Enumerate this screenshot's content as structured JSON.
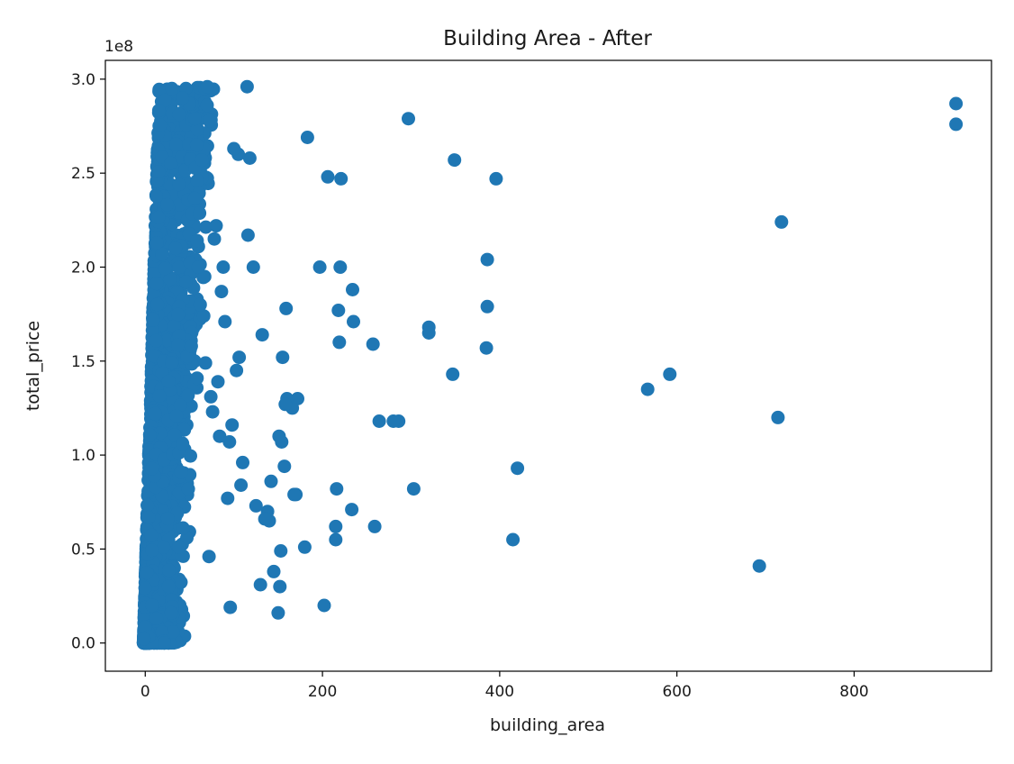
{
  "chart_data": {
    "type": "scatter",
    "title": "Building Area - After",
    "xlabel": "building_area",
    "ylabel": "total_price",
    "y_offset_label": "1e8",
    "xlim": [
      -45,
      955
    ],
    "ylim": [
      -0.15,
      3.1
    ],
    "x_ticks": [
      0,
      200,
      400,
      600,
      800
    ],
    "x_tick_labels": [
      "0",
      "200",
      "400",
      "600",
      "800"
    ],
    "y_ticks": [
      0.0,
      0.5,
      1.0,
      1.5,
      2.0,
      2.5,
      3.0
    ],
    "y_tick_labels": [
      "0.0",
      "0.5",
      "1.0",
      "1.5",
      "2.0",
      "2.5",
      "3.0"
    ],
    "grid": false,
    "legend": "none",
    "marker_color": "#1f77b4",
    "series": [
      {
        "x": [
          915,
          915,
          718,
          714,
          693,
          592,
          567,
          420,
          415,
          396,
          386,
          386,
          385,
          349,
          347,
          320,
          320,
          303,
          297,
          286,
          280,
          264,
          259,
          257,
          235,
          234,
          233,
          221,
          220,
          219,
          218,
          216,
          215,
          215,
          206,
          202,
          197,
          183,
          180,
          172,
          170,
          168,
          166,
          160,
          159,
          158,
          157,
          155,
          154,
          153,
          152,
          151,
          150,
          145,
          142,
          140,
          138,
          135,
          132,
          130,
          125,
          122,
          118,
          116,
          115,
          110,
          108,
          106,
          105,
          103,
          100,
          98,
          96,
          95,
          93,
          90,
          88,
          86,
          84,
          82,
          80,
          78,
          76,
          74,
          72,
          70,
          68,
          66,
          64,
          62,
          60,
          58,
          56,
          52,
          50,
          46,
          42,
          38,
          34,
          30
        ],
        "y": [
          2.87,
          2.76,
          2.24,
          1.2,
          0.41,
          1.43,
          1.35,
          0.93,
          0.55,
          2.47,
          2.04,
          1.79,
          1.57,
          2.57,
          1.43,
          1.68,
          1.65,
          0.82,
          2.79,
          1.18,
          1.18,
          1.18,
          0.62,
          1.59,
          1.71,
          1.88,
          0.71,
          2.47,
          2.0,
          1.6,
          1.77,
          0.82,
          0.62,
          0.55,
          2.48,
          0.2,
          2.0,
          2.69,
          0.51,
          1.3,
          0.79,
          0.79,
          1.25,
          1.3,
          1.78,
          1.27,
          0.94,
          1.52,
          1.07,
          0.49,
          0.3,
          1.1,
          0.16,
          0.38,
          0.86,
          0.65,
          0.7,
          0.66,
          1.64,
          0.31,
          0.73,
          2.0,
          2.58,
          2.17,
          2.96,
          0.96,
          0.84,
          1.52,
          2.6,
          1.45,
          2.63,
          1.16,
          0.19,
          1.07,
          0.77,
          1.71,
          2.0,
          1.87,
          1.1,
          1.39,
          2.22,
          2.15,
          1.23,
          1.31,
          0.46,
          2.96,
          1.49,
          1.74,
          2.57,
          1.8,
          2.0,
          2.65,
          2.79,
          1.58,
          2.87,
          2.95,
          2.9,
          2.44,
          2.1,
          2.95
        ]
      }
    ]
  }
}
